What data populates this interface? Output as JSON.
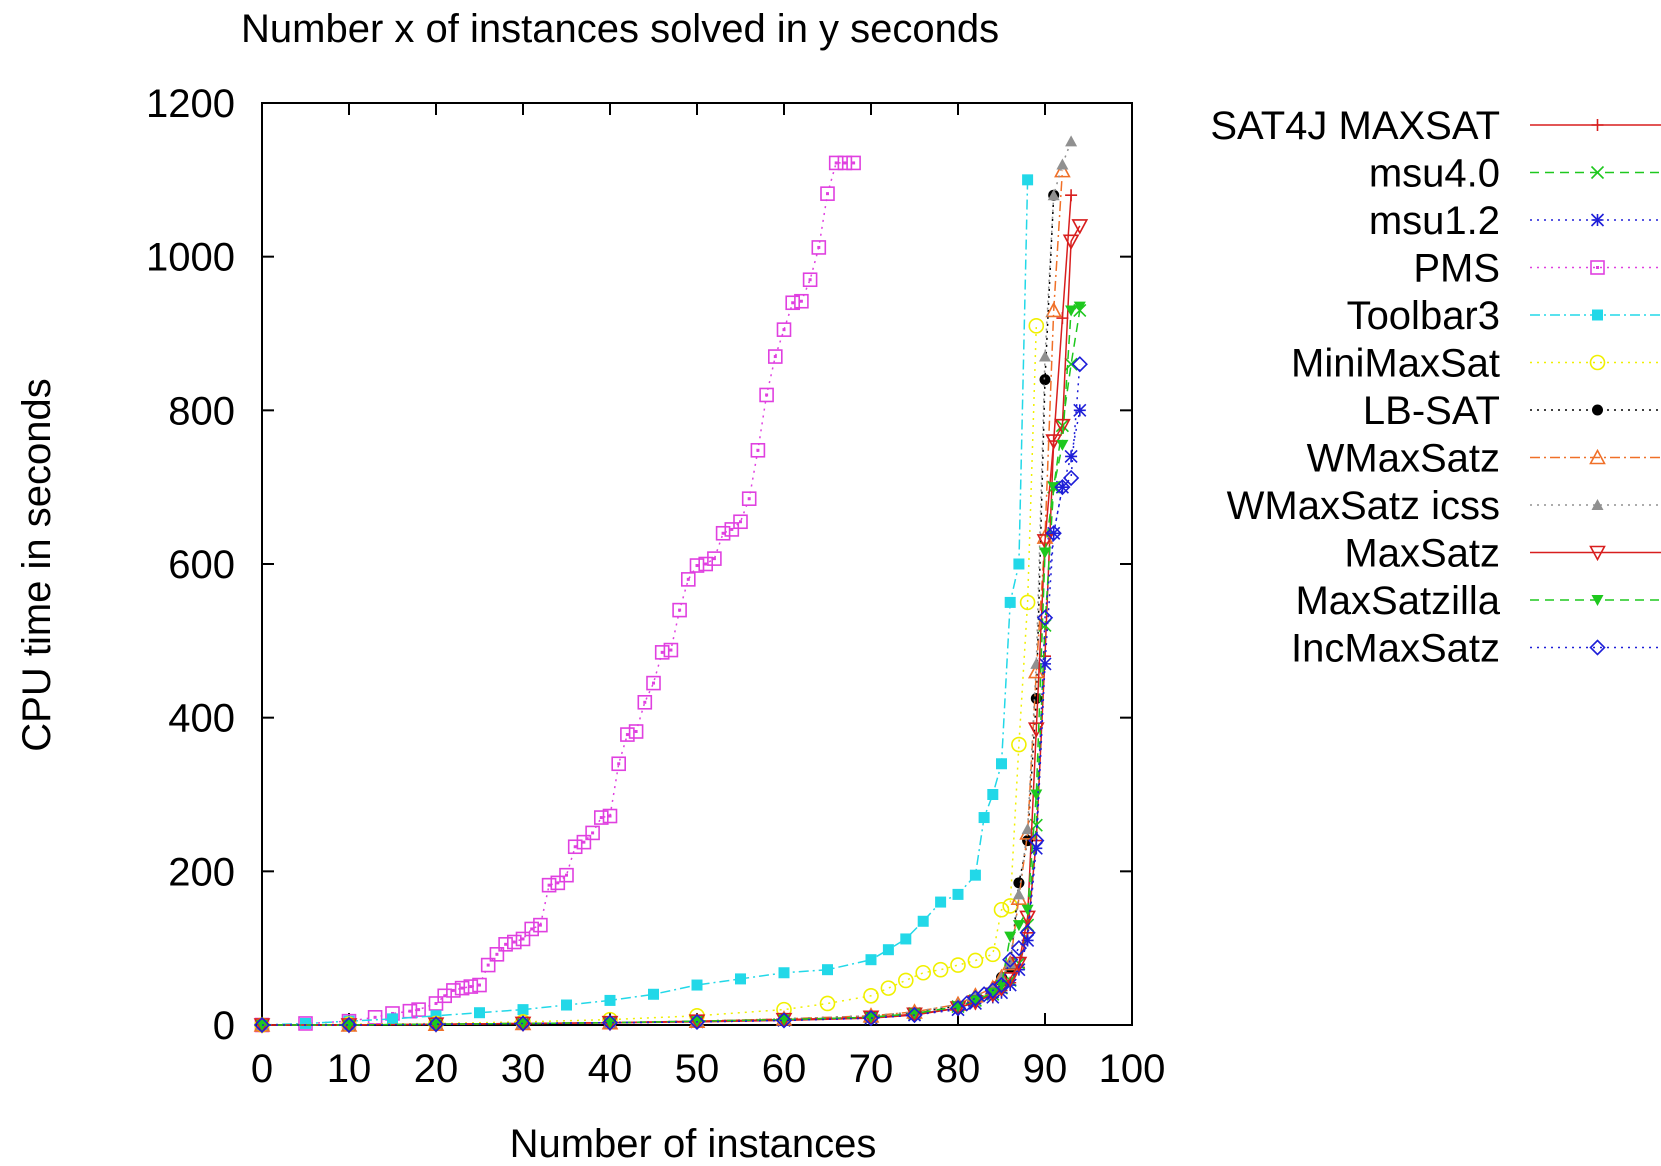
{
  "chart_data": {
    "type": "line",
    "title": "Number x of instances solved in y seconds",
    "xlabel": "Number of instances",
    "ylabel": "CPU time in seconds",
    "xlim": [
      0,
      100
    ],
    "ylim": [
      0,
      1200
    ],
    "xticks": [
      0,
      10,
      20,
      30,
      40,
      50,
      60,
      70,
      80,
      90,
      100
    ],
    "yticks": [
      0,
      200,
      400,
      600,
      800,
      1000,
      1200
    ],
    "xtick_labels": [
      "0",
      "10",
      "20",
      "30",
      "40",
      "50",
      "60",
      "70",
      "80",
      "90",
      "100"
    ],
    "ytick_labels": [
      "0",
      "200",
      "400",
      "600",
      "800",
      "1000",
      "1200"
    ],
    "grid": false,
    "legend_position": "right, outside plot",
    "series": [
      {
        "name": "SAT4J MAXSAT",
        "color": "#d81e1e",
        "dash": "solid",
        "marker": "plus",
        "x": [
          0,
          10,
          20,
          30,
          40,
          50,
          60,
          70,
          75,
          80,
          82,
          84,
          85,
          86,
          87,
          88,
          89,
          90,
          91,
          92,
          93
        ],
        "y": [
          0,
          0,
          1,
          2,
          3,
          4,
          6,
          9,
          13,
          22,
          30,
          40,
          45,
          55,
          75,
          120,
          240,
          480,
          760,
          920,
          1080
        ]
      },
      {
        "name": "msu4.0",
        "color": "#1ec81e",
        "dash": "dashed",
        "marker": "x",
        "x": [
          0,
          10,
          20,
          30,
          40,
          50,
          60,
          70,
          75,
          80,
          82,
          84,
          85,
          86,
          87,
          88,
          89,
          90,
          91,
          92,
          93,
          94
        ],
        "y": [
          0,
          0,
          1,
          2,
          3,
          5,
          7,
          10,
          15,
          24,
          32,
          40,
          48,
          58,
          80,
          130,
          260,
          520,
          700,
          780,
          860,
          930
        ]
      },
      {
        "name": "msu1.2",
        "color": "#1e1ed8",
        "dash": "dotted",
        "marker": "star",
        "x": [
          0,
          10,
          20,
          30,
          40,
          50,
          60,
          70,
          75,
          80,
          82,
          84,
          85,
          86,
          87,
          88,
          89,
          90,
          91,
          92,
          93,
          94
        ],
        "y": [
          0,
          0,
          1,
          2,
          3,
          4,
          6,
          9,
          13,
          20,
          28,
          36,
          42,
          52,
          72,
          110,
          230,
          470,
          640,
          700,
          740,
          800
        ]
      },
      {
        "name": "PMS",
        "color": "#e040e0",
        "dash": "dotted",
        "marker": "square-dot",
        "x": [
          0,
          5,
          10,
          13,
          15,
          17,
          18,
          20,
          21,
          22,
          23,
          24,
          25,
          26,
          27,
          28,
          29,
          30,
          31,
          32,
          33,
          34,
          35,
          36,
          37,
          38,
          39,
          40,
          41,
          42,
          43,
          44,
          45,
          46,
          47,
          48,
          49,
          50,
          51,
          52,
          53,
          54,
          55,
          56,
          57,
          58,
          59,
          60,
          61,
          62,
          63,
          64,
          65,
          66,
          67,
          68
        ],
        "y": [
          0,
          2,
          5,
          10,
          15,
          18,
          20,
          28,
          38,
          45,
          48,
          50,
          52,
          78,
          92,
          105,
          108,
          112,
          125,
          130,
          182,
          185,
          195,
          232,
          238,
          250,
          270,
          272,
          340,
          378,
          382,
          420,
          445,
          485,
          488,
          540,
          580,
          598,
          600,
          607,
          640,
          645,
          655,
          685,
          748,
          820,
          870,
          905,
          940,
          942,
          970,
          1012,
          1082,
          1122,
          1122,
          1122
        ]
      },
      {
        "name": "Toolbar3",
        "color": "#22d8e8",
        "dash": "dashdot",
        "marker": "filled-square",
        "x": [
          0,
          5,
          10,
          15,
          20,
          25,
          30,
          35,
          40,
          45,
          50,
          55,
          60,
          65,
          70,
          72,
          74,
          76,
          78,
          80,
          82,
          83,
          84,
          85,
          86,
          87,
          88
        ],
        "y": [
          0,
          2,
          5,
          8,
          12,
          16,
          20,
          26,
          32,
          40,
          52,
          60,
          68,
          72,
          85,
          98,
          112,
          135,
          160,
          170,
          195,
          270,
          300,
          340,
          550,
          600,
          1100
        ]
      },
      {
        "name": "MiniMaxSat",
        "color": "#f0f000",
        "dash": "dotted",
        "marker": "circle",
        "x": [
          0,
          10,
          20,
          30,
          40,
          50,
          60,
          65,
          70,
          72,
          74,
          76,
          78,
          80,
          82,
          84,
          85,
          86,
          87,
          88,
          89
        ],
        "y": [
          0,
          1,
          2,
          4,
          7,
          12,
          20,
          28,
          38,
          48,
          58,
          68,
          72,
          78,
          84,
          92,
          150,
          155,
          365,
          550,
          910
        ]
      },
      {
        "name": "LB-SAT",
        "color": "#000000",
        "dash": "dotted",
        "marker": "filled-circle",
        "x": [
          0,
          10,
          20,
          30,
          40,
          50,
          60,
          70,
          75,
          80,
          82,
          84,
          85,
          86,
          87,
          88,
          89,
          90,
          91
        ],
        "y": [
          0,
          0,
          1,
          2,
          3,
          5,
          8,
          12,
          16,
          25,
          35,
          45,
          62,
          75,
          185,
          240,
          425,
          840,
          1080
        ]
      },
      {
        "name": "WMaxSatz",
        "color": "#f07028",
        "dash": "dashdot",
        "marker": "triangle",
        "x": [
          0,
          10,
          20,
          30,
          40,
          50,
          60,
          70,
          75,
          80,
          82,
          84,
          85,
          86,
          87,
          88,
          89,
          90,
          91,
          92
        ],
        "y": [
          0,
          0,
          1,
          2,
          3,
          5,
          8,
          12,
          17,
          27,
          38,
          48,
          62,
          80,
          165,
          250,
          460,
          635,
          930,
          1112
        ]
      },
      {
        "name": "WMaxSatz icss",
        "color": "#909090",
        "dash": "dotted",
        "marker": "filled-triangle",
        "x": [
          0,
          10,
          20,
          30,
          40,
          50,
          60,
          70,
          75,
          80,
          82,
          84,
          85,
          86,
          87,
          88,
          89,
          90,
          91,
          92,
          93
        ],
        "y": [
          0,
          0,
          1,
          2,
          3,
          5,
          8,
          12,
          17,
          27,
          38,
          48,
          62,
          80,
          170,
          255,
          470,
          870,
          1080,
          1120,
          1150
        ]
      },
      {
        "name": "MaxSatz",
        "color": "#d81e1e",
        "dash": "solid",
        "marker": "triangle-down",
        "x": [
          0,
          10,
          20,
          30,
          40,
          50,
          60,
          70,
          75,
          80,
          82,
          84,
          85,
          86,
          87,
          88,
          89,
          90,
          91,
          92,
          93,
          94
        ],
        "y": [
          0,
          0,
          1,
          2,
          3,
          5,
          7,
          10,
          14,
          22,
          30,
          40,
          48,
          60,
          80,
          140,
          385,
          630,
          760,
          780,
          1020,
          1040
        ]
      },
      {
        "name": "MaxSatzilla",
        "color": "#1ec81e",
        "dash": "dashed",
        "marker": "filled-triangle-down",
        "x": [
          0,
          10,
          20,
          30,
          40,
          50,
          60,
          70,
          75,
          80,
          82,
          84,
          85,
          86,
          87,
          88,
          89,
          90,
          91,
          92,
          93,
          94
        ],
        "y": [
          0,
          0,
          1,
          2,
          3,
          5,
          7,
          10,
          15,
          24,
          32,
          42,
          52,
          115,
          130,
          150,
          300,
          615,
          700,
          755,
          930,
          935
        ]
      },
      {
        "name": "IncMaxSatz",
        "color": "#1e1ed8",
        "dash": "dotted",
        "marker": "diamond",
        "x": [
          0,
          10,
          20,
          30,
          40,
          50,
          60,
          70,
          75,
          80,
          81,
          82,
          83,
          84,
          85,
          86,
          87,
          88,
          89,
          90,
          91,
          92,
          93,
          94
        ],
        "y": [
          0,
          0,
          1,
          2,
          3,
          4,
          6,
          9,
          13,
          22,
          28,
          35,
          40,
          45,
          52,
          85,
          100,
          120,
          240,
          530,
          640,
          700,
          712,
          860
        ]
      }
    ]
  }
}
